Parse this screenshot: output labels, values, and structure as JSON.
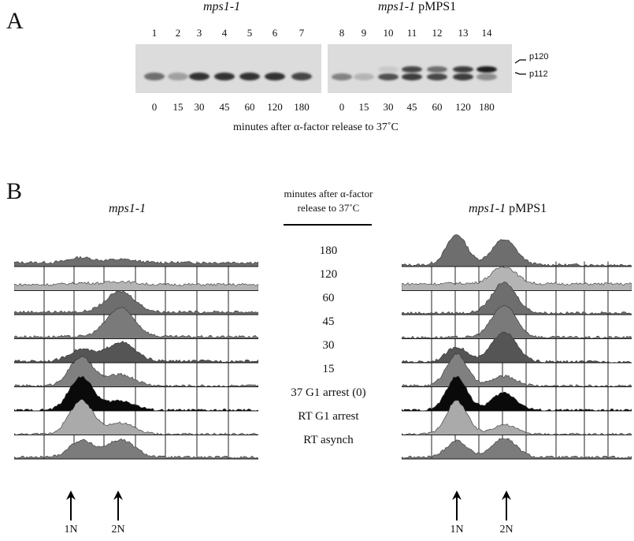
{
  "panel_a": {
    "letter": "A",
    "strain_left": "mps1-1",
    "strain_right_italic": "mps1-1",
    "strain_right_plain": " pMPS1",
    "lanes": [
      "1",
      "2",
      "3",
      "4",
      "5",
      "6",
      "7",
      "8",
      "9",
      "10",
      "11",
      "12",
      "13",
      "14"
    ],
    "times": [
      "0",
      "15",
      "30",
      "45",
      "60",
      "120",
      "180",
      "0",
      "15",
      "30",
      "45",
      "60",
      "120",
      "180"
    ],
    "band_upper": "p120",
    "band_lower": "p112",
    "xlabel": "minutes after α-factor release to 37˚C",
    "left_band_intensity": [
      0.55,
      0.3,
      0.85,
      0.85,
      0.85,
      0.85,
      0.75
    ],
    "right_lower_intensity": [
      0.45,
      0.2,
      0.7,
      0.8,
      0.75,
      0.8,
      0.4
    ],
    "right_upper_intensity": [
      0.0,
      0.0,
      0.1,
      0.75,
      0.55,
      0.8,
      0.95
    ]
  },
  "panel_b": {
    "letter": "B",
    "strain_left": "mps1-1",
    "strain_right_italic": "mps1-1",
    "strain_right_plain": " pMPS1",
    "center_header_line1": "minutes after α-factor",
    "center_header_line2": "release to 37˚C",
    "rows": [
      "180",
      "120",
      "60",
      "45",
      "30",
      "15",
      "37 G1 arrest (0)",
      "RT G1 arrest",
      "RT asynch"
    ],
    "ploidy_left": [
      "1N",
      "2N"
    ],
    "ploidy_right": [
      "1N",
      "2N"
    ],
    "fill_colors": [
      "#6e6e6e",
      "#b4b4b4",
      "#6e6e6e",
      "#7a7a7a",
      "#555555",
      "#808080",
      "#0a0a0a",
      "#aaaaaa",
      "#7c7c7c"
    ],
    "left_profiles": [
      {
        "p1": 0.15,
        "p2": 0.1,
        "bg": 0.12
      },
      {
        "p1": 0.05,
        "p2": 0.1,
        "bg": 0.18
      },
      {
        "p1": 0.0,
        "p2": 0.65,
        "bg": 0.08
      },
      {
        "p1": 0.0,
        "p2": 0.9,
        "bg": 0.06
      },
      {
        "p1": 0.35,
        "p2": 0.6,
        "bg": 0.05
      },
      {
        "p1": 0.85,
        "p2": 0.35,
        "bg": 0.03
      },
      {
        "p1": 1.0,
        "p2": 0.3,
        "bg": 0.02
      },
      {
        "p1": 1.0,
        "p2": 0.35,
        "bg": 0.02
      },
      {
        "p1": 0.5,
        "p2": 0.55,
        "bg": 0.05
      }
    ],
    "right_profiles": [
      {
        "p1": 0.9,
        "p2": 0.8,
        "bg": 0.05
      },
      {
        "p1": 0.02,
        "p2": 0.55,
        "bg": 0.2
      },
      {
        "p1": 0.0,
        "p2": 0.95,
        "bg": 0.05
      },
      {
        "p1": 0.0,
        "p2": 1.0,
        "bg": 0.04
      },
      {
        "p1": 0.45,
        "p2": 0.95,
        "bg": 0.03
      },
      {
        "p1": 0.95,
        "p2": 0.3,
        "bg": 0.03
      },
      {
        "p1": 1.0,
        "p2": 0.55,
        "bg": 0.02
      },
      {
        "p1": 1.0,
        "p2": 0.3,
        "bg": 0.02
      },
      {
        "p1": 0.5,
        "p2": 0.6,
        "bg": 0.05
      }
    ]
  }
}
